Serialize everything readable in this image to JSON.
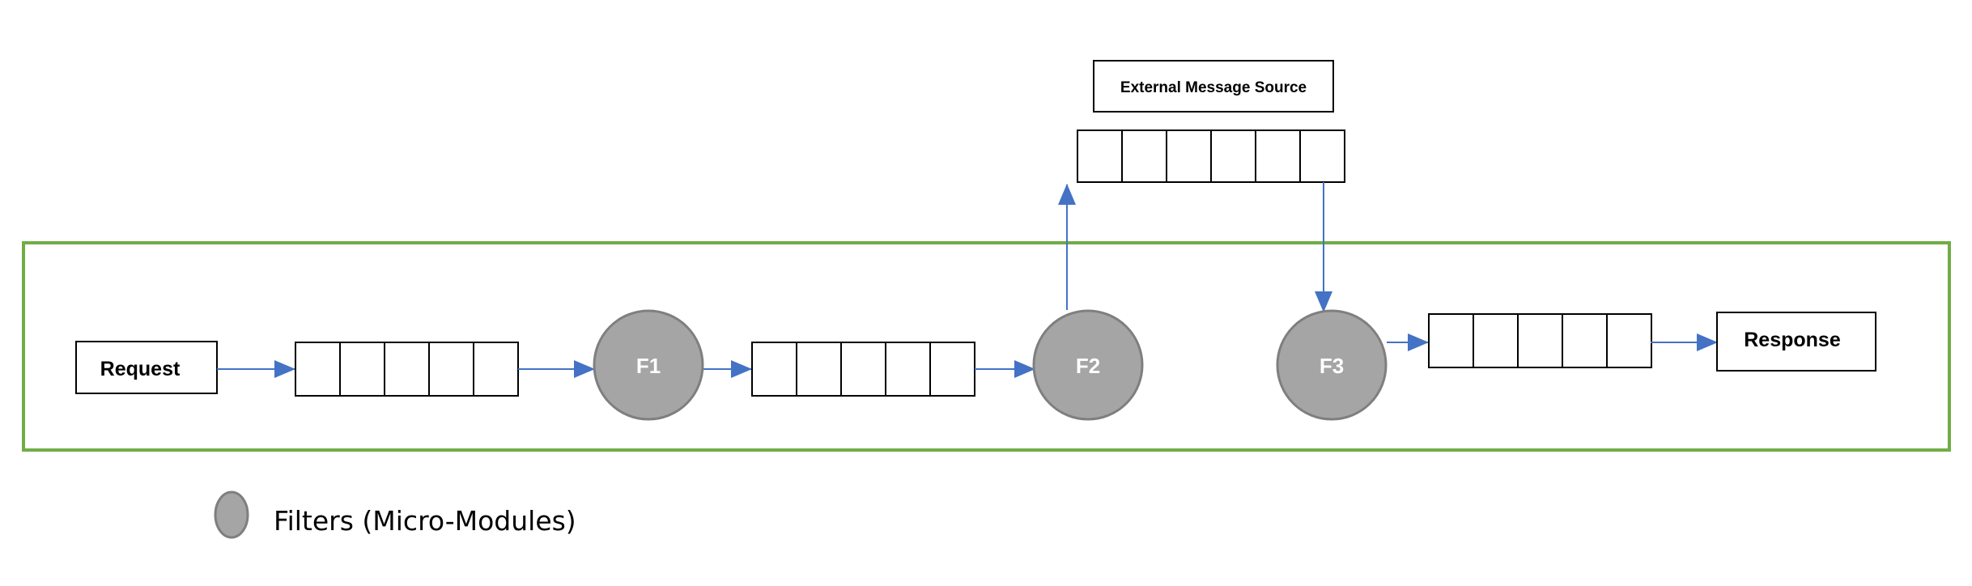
{
  "colors": {
    "boundary": "#70ad47",
    "arrow": "#4472c4",
    "filter_fill": "#a5a5a5",
    "filter_stroke": "#7f7f7f",
    "box_stroke": "#000000"
  },
  "boxes": {
    "request": "Request",
    "response": "Response",
    "external_source": "External Message Source"
  },
  "filters": {
    "f1": "F1",
    "f2": "F2",
    "f3": "F3"
  },
  "queues": {
    "q1_cells": 5,
    "q2_cells": 5,
    "external_cells": 6,
    "q3_cells": 5
  },
  "legend": {
    "label": "Filters (Micro-Modules)",
    "icon": "filter-circle-icon"
  }
}
